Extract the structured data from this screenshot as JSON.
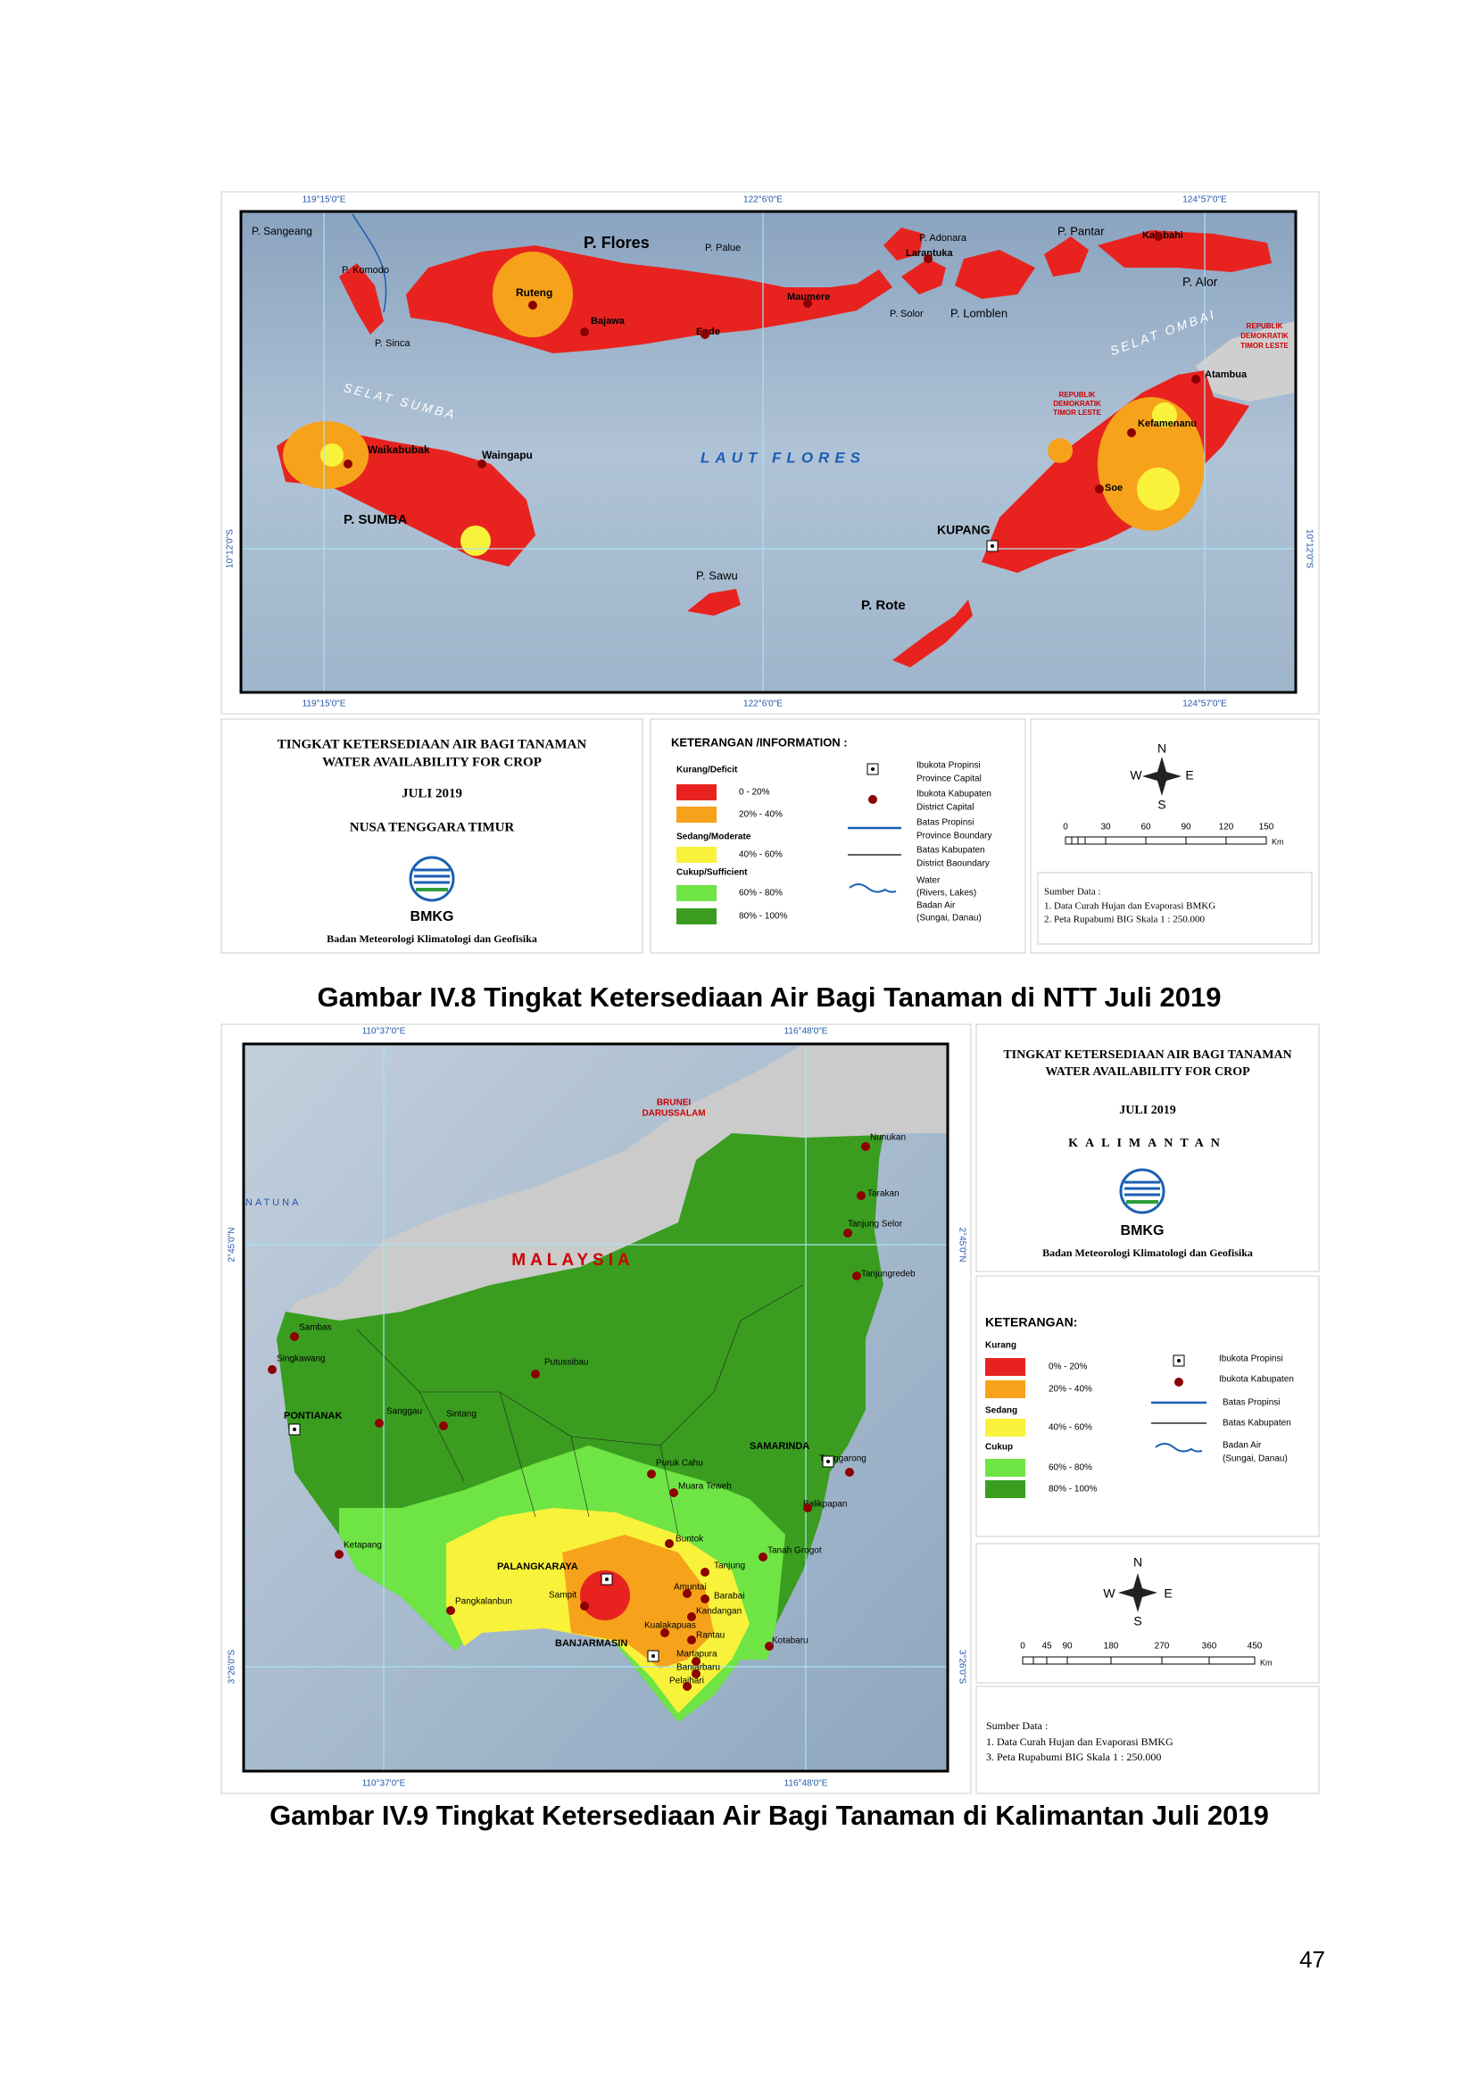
{
  "ntt_figure": {
    "coords_lon": [
      "119°15'0\"E",
      "122°6'0\"E",
      "124°57'0\"E"
    ],
    "coords_lat": "10°12'0\"S",
    "labels": [
      "P. Sangeang",
      "P. Komodo",
      "P. Flores",
      "P. Palue",
      "P. Adonara",
      "Larantuka",
      "P. Pantar",
      "Kalabahi",
      "Ruteng",
      "Bajawa",
      "Ende",
      "Maumere",
      "P. Solor",
      "P. Lomblen",
      "P. Alor",
      "P. Sinca",
      "SELAT SUMBA",
      "SELAT OMBAI",
      "REPUBLIK",
      "DEMOKRATIK",
      "TIMOR LESTE",
      "Atambua",
      "REPUBLIK",
      "DEMOKRATIK",
      "TIMOR LESTE",
      "Kefamenanu",
      "Waikabubak",
      "Waingapu",
      "LAUT FLORES",
      "P. SUMBA",
      "Soe",
      "KUPANG",
      "P. Sawu",
      "P. Rote"
    ],
    "title_block": {
      "lines": [
        "TINGKAT  KETERSEDIAAN AIR BAGI TANAMAN",
        "WATER AVAILABILITY FOR CROP",
        "JULI 2019",
        "NUSA TENGGARA TIMUR"
      ],
      "logo": "BMKG",
      "agency": "Badan Meteorologi Klimatologi dan Geofisika"
    },
    "legend": {
      "heading": "KETERANGAN /INFORMATION :",
      "classes": [
        "Kurang/Deficit",
        "0 - 20%",
        "20% - 40%",
        "Sedang/Moderate",
        "40% - 60%",
        "Cukup/Sufficient",
        "60% - 80%",
        "80% - 100%"
      ],
      "symbols": [
        "Ibukota Propinsi",
        "Province Capital",
        "Ibukota Kabupaten",
        "District Capital",
        "Batas Propinsi",
        "Province Boundary",
        "Batas Kabupaten",
        "District Baoundary",
        "Water",
        "(Rivers, Lakes)",
        "Badan Air",
        "(Sungai, Danau)"
      ]
    },
    "compass": [
      "N",
      "S",
      "W",
      "E"
    ],
    "scale": [
      "0",
      "30",
      "60",
      "90",
      "120",
      "150",
      "Km"
    ],
    "source": [
      "Sumber Data :",
      "1. Data Curah Hujan dan Evaporasi BMKG",
      "2. Peta Rupabumi BIG Skala 1 : 250.000"
    ],
    "caption": "Gambar IV.8 Tingkat Ketersediaan Air Bagi Tanaman di NTT Juli 2019"
  },
  "kalimantan_figure": {
    "coords_lon": [
      "110°37'0\"E",
      "116°48'0\"E"
    ],
    "coords_lat": [
      "2°45'0\"N",
      "3°26'0\"S"
    ],
    "labels": [
      "BRUNEI",
      "DARUSSALAM",
      "MALAYSIA",
      "NATUNA",
      "Nunukan",
      "Tarakan",
      "Tanjung Selor",
      "Tanjungredeb",
      "Sambas",
      "Singkawang",
      "Putussibau",
      "PONTIANAK",
      "Sanggau",
      "Sintang",
      "Puruk Cahu",
      "SAMARINDA",
      "Muara Teweh",
      "Tenggarong",
      "Balikpapan",
      "Buntok",
      "Ketapang",
      "Tanah Grogot",
      "PALANGKARAYA",
      "Tanjung",
      "Amuntai",
      "Barabai",
      "Pangkalanbun",
      "Sampit",
      "Kandangan",
      "Kualakapuas",
      "Rantau",
      "Kotabaru",
      "BANJARMASIN",
      "Martapura",
      "Banjarbaru",
      "Pelaihari"
    ],
    "title_block": {
      "lines": [
        "TINGKAT KETERSEDIAAN AIR BAGI TANAMAN",
        "WATER  AVAILABILITY FOR CROP",
        "JULI 2019",
        "KALIMANTAN"
      ],
      "logo": "BMKG",
      "agency": "Badan Meteorologi Klimatologi dan Geofisika"
    },
    "legend": {
      "heading": "KETERANGAN:",
      "classes": [
        "Kurang",
        "0% - 20%",
        "20% - 40%",
        "Sedang",
        "40% - 60%",
        "Cukup",
        "60% - 80%",
        "80% - 100%"
      ],
      "symbols": [
        "Ibukota Propinsi",
        "Ibukota Kabupaten",
        "Batas Propinsi",
        "Batas Kabupaten",
        "Badan Air",
        "(Sungai, Danau)"
      ]
    },
    "compass": [
      "N",
      "S",
      "W",
      "E"
    ],
    "scale": [
      "0",
      "45",
      "90",
      "180",
      "270",
      "360",
      "450",
      "Km"
    ],
    "source": [
      "Sumber Data :",
      "1. Data Curah Hujan dan Evaporasi BMKG",
      "3. Peta Rupabumi BIG Skala 1 : 250.000"
    ],
    "caption": "Gambar IV.9 Tingkat Ketersediaan Air Bagi Tanaman di Kalimantan Juli 2019"
  },
  "page_number": "47"
}
